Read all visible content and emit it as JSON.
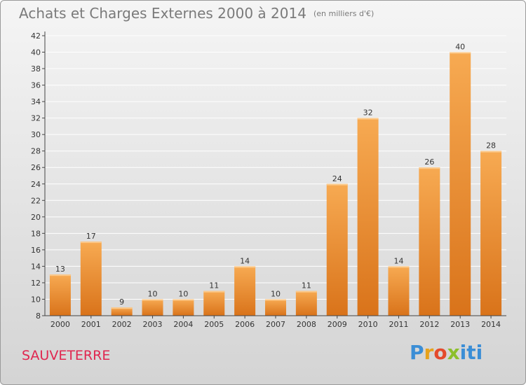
{
  "header": {
    "title": "Achats et Charges Externes 2000 à 2014",
    "unit": "(en milliers d'€)"
  },
  "footer": {
    "place": "SAUVETERRE",
    "brand": "Proxiti"
  },
  "colors": {
    "bar_light": "#f7a84e",
    "bar_dark": "#d9731a",
    "axis": "#444444",
    "grid": "#ffffff"
  },
  "chart_data": {
    "type": "bar",
    "title": "Achats et Charges Externes 2000 à 2014",
    "subtitle": "(en milliers d'€)",
    "xlabel": "",
    "ylabel": "",
    "categories": [
      "2000",
      "2001",
      "2002",
      "2003",
      "2004",
      "2005",
      "2006",
      "2007",
      "2008",
      "2009",
      "2010",
      "2011",
      "2012",
      "2013",
      "2014"
    ],
    "values": [
      13,
      17,
      9,
      10,
      10,
      11,
      14,
      10,
      11,
      24,
      32,
      14,
      26,
      40,
      28
    ],
    "ylim": [
      8,
      42
    ],
    "yticks": [
      8,
      10,
      12,
      14,
      16,
      18,
      20,
      22,
      24,
      26,
      28,
      30,
      32,
      34,
      36,
      38,
      40,
      42
    ],
    "grid": true,
    "legend": "none"
  }
}
